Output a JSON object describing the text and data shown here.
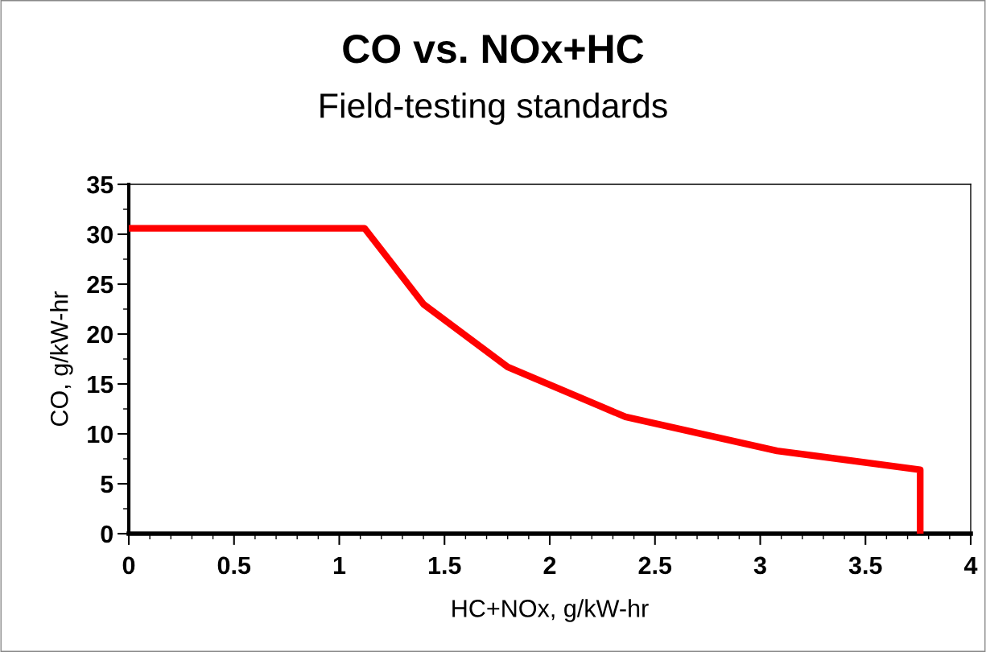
{
  "chart_data": {
    "type": "line",
    "title": "CO vs. NOx+HC",
    "subtitle": "Field-testing standards",
    "xlabel": "HC+NOx, g/kW-hr",
    "ylabel": "CO, g/kW-hr",
    "series": [
      {
        "color": "#ff0000",
        "x": [
          0,
          1.12,
          1.4,
          1.8,
          2.36,
          3.08,
          3.76,
          3.76
        ],
        "values": [
          30.6,
          30.6,
          23.0,
          16.7,
          11.7,
          8.3,
          6.4,
          0
        ]
      }
    ],
    "xlim": [
      0,
      4
    ],
    "xticks": [
      0,
      0.5,
      1,
      1.5,
      2,
      2.5,
      3,
      3.5,
      4
    ],
    "ylim": [
      0,
      35
    ],
    "yticks": [
      0,
      5,
      10,
      15,
      20,
      25,
      30,
      35
    ],
    "grid": false,
    "marker": "none",
    "line_style": "solid"
  }
}
